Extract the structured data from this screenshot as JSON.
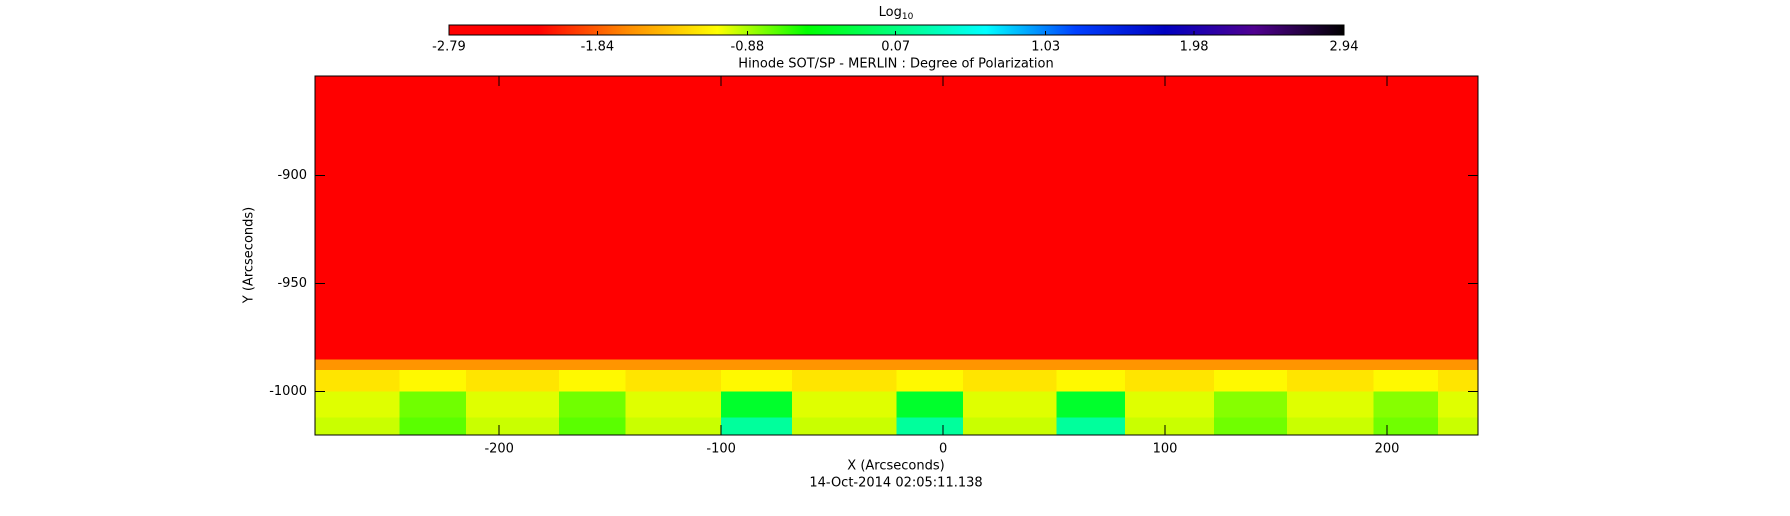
{
  "chart_data": {
    "type": "heatmap",
    "title": "Hinode SOT/SP - MERLIN : Degree of Polarization",
    "subtitle": "14-Oct-2014 02:05:11.138",
    "x_label": "X (Arcseconds)",
    "y_label": "Y (Arcseconds)",
    "colorbar_label": "Log",
    "colorbar_label_subscript": "10",
    "colorbar_lim": [
      -2.79,
      2.94
    ],
    "colorbar_ticks": [
      -2.79,
      -1.84,
      -0.88,
      0.07,
      1.03,
      1.98,
      2.94
    ],
    "colormap": [
      "#ff0000",
      "#ff0000",
      "#ff8c00",
      "#ffff00",
      "#00ff00",
      "#00ff80",
      "#00ffff",
      "#0040ff",
      "#0000c0",
      "#500090",
      "#000000"
    ],
    "xlim": [
      -283,
      241
    ],
    "ylim": [
      -1020,
      -854
    ],
    "xticks": [
      -200,
      -100,
      0,
      100,
      200
    ],
    "yticks": [
      -900,
      -950,
      -1000
    ],
    "xbins": [
      -283,
      -245,
      -215,
      -173,
      -143,
      -100,
      -68,
      -21,
      9,
      51,
      82,
      122,
      155,
      194,
      223,
      241
    ],
    "ybins": [
      -1020,
      -1012,
      -1000,
      -990,
      -985,
      -854
    ],
    "z": [
      [
        -0.95,
        -0.7,
        -0.95,
        -0.7,
        -0.95,
        0.2,
        -0.95,
        0.2,
        -0.95,
        0.2,
        -0.95,
        -0.75,
        -0.95,
        -0.75,
        -0.95
      ],
      [
        -1.0,
        -0.75,
        -1.0,
        -0.75,
        -1.0,
        -0.3,
        -1.0,
        -0.3,
        -1.0,
        -0.3,
        -1.0,
        -0.8,
        -1.0,
        -0.8,
        -1.0
      ],
      [
        -1.2,
        -1.1,
        -1.2,
        -1.1,
        -1.2,
        -1.1,
        -1.2,
        -1.1,
        -1.2,
        -1.1,
        -1.2,
        -1.1,
        -1.2,
        -1.1,
        -1.2
      ],
      [
        -1.6,
        -1.6,
        -1.6,
        -1.6,
        -1.6,
        -1.6,
        -1.6,
        -1.6,
        -1.6,
        -1.6,
        -1.6,
        -1.6,
        -1.6,
        -1.6,
        -1.6
      ],
      [
        -2.6,
        -2.6,
        -2.6,
        -2.6,
        -2.6,
        -2.6,
        -2.6,
        -2.6,
        -2.6,
        -2.6,
        -2.6,
        -2.6,
        -2.6,
        -2.6,
        -2.6
      ]
    ]
  }
}
